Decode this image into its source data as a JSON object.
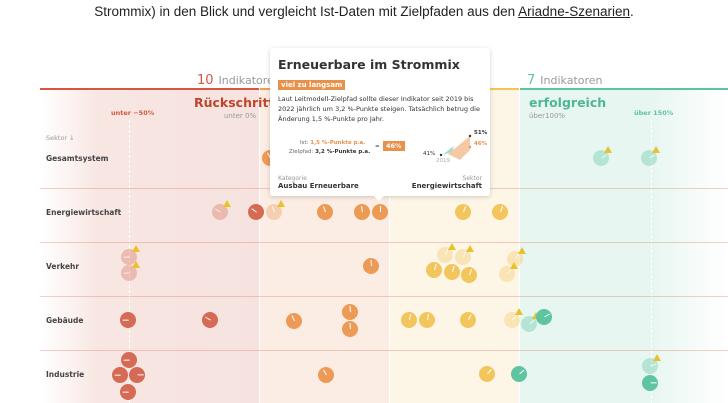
{
  "intro": {
    "text": "Strommix) in den Blick und vergleicht Ist-Daten mit Zielpfaden aus den ",
    "link": "Ariadne-Szenarien",
    "end": "."
  },
  "columns": [
    {
      "key": "red",
      "count": "10",
      "count_label": "Indikatoren",
      "title": "Rückschritt",
      "subtitle": "unter 0%",
      "reference": "unter −50%",
      "color": "#d6573f"
    },
    {
      "key": "orange",
      "color": "#ef9e55"
    },
    {
      "key": "yellow",
      "color": "#f2c55a"
    },
    {
      "key": "green",
      "count": "7",
      "count_label": "Indikatoren",
      "title": "erfolgreich",
      "subtitle": "über100%",
      "reference": "über 150%",
      "color": "#5cc39f"
    }
  ],
  "sector_header": "Sektor ↓",
  "sectors": [
    "Gesamtsystem",
    "Energiewirtschaft",
    "Verkehr",
    "Gebäude",
    "Industrie"
  ],
  "tooltip": {
    "title": "Erneuerbare im Strommix",
    "badge": "viel zu langsam",
    "text": "Laut Leitmodell-Zielpfad sollte dieser Indikator seit 2019 bis 2022 jährlich um 3,2 %-Punkte steigen. Tatsächlich betrug die Änderung 1,5 %-Punkte pro Jahr.",
    "ist_label": "Ist:",
    "ist_value": "1,5 %-Punkte p.a.",
    "ziel_label": "Zielpfad:",
    "ziel_value": "3,2 %-Punkte p.a.",
    "equals": "=",
    "ratio": "46%",
    "start_value": "41%",
    "target_value": "51%",
    "actual_value": "46%",
    "start_year": "2019",
    "category_label": "Kategorie",
    "category": "Ausbau Erneuerbare",
    "sector_label": "Sektor",
    "sector": "Energiewirtschaft"
  }
}
